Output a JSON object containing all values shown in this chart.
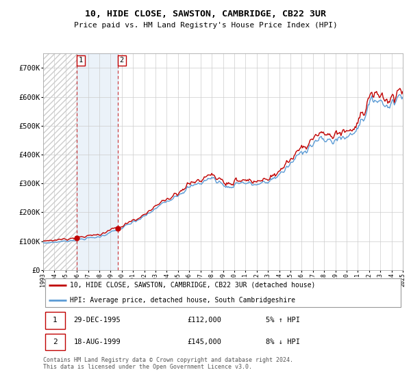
{
  "title": "10, HIDE CLOSE, SAWSTON, CAMBRIDGE, CB22 3UR",
  "subtitle": "Price paid vs. HM Land Registry's House Price Index (HPI)",
  "ylim": [
    0,
    750000
  ],
  "yticks": [
    0,
    100000,
    200000,
    300000,
    400000,
    500000,
    600000,
    700000
  ],
  "ytick_labels": [
    "£0",
    "£100K",
    "£200K",
    "£300K",
    "£400K",
    "£500K",
    "£600K",
    "£700K"
  ],
  "x_start_year": 1993,
  "x_end_year": 2025,
  "hpi_color": "#5b9bd5",
  "price_color": "#c00000",
  "sale1_year": 1995.99,
  "sale1_price": 112000,
  "sale2_year": 1999.63,
  "sale2_price": 145000,
  "legend_line1": "10, HIDE CLOSE, SAWSTON, CAMBRIDGE, CB22 3UR (detached house)",
  "legend_line2": "HPI: Average price, detached house, South Cambridgeshire",
  "table_row1_num": "1",
  "table_row1_date": "29-DEC-1995",
  "table_row1_price": "£112,000",
  "table_row1_hpi": "5% ↑ HPI",
  "table_row2_num": "2",
  "table_row2_date": "18-AUG-1999",
  "table_row2_price": "£145,000",
  "table_row2_hpi": "8% ↓ HPI",
  "footer": "Contains HM Land Registry data © Crown copyright and database right 2024.\nThis data is licensed under the Open Government Licence v3.0.",
  "grid_color": "#cccccc",
  "hatch_color": "#cccccc"
}
